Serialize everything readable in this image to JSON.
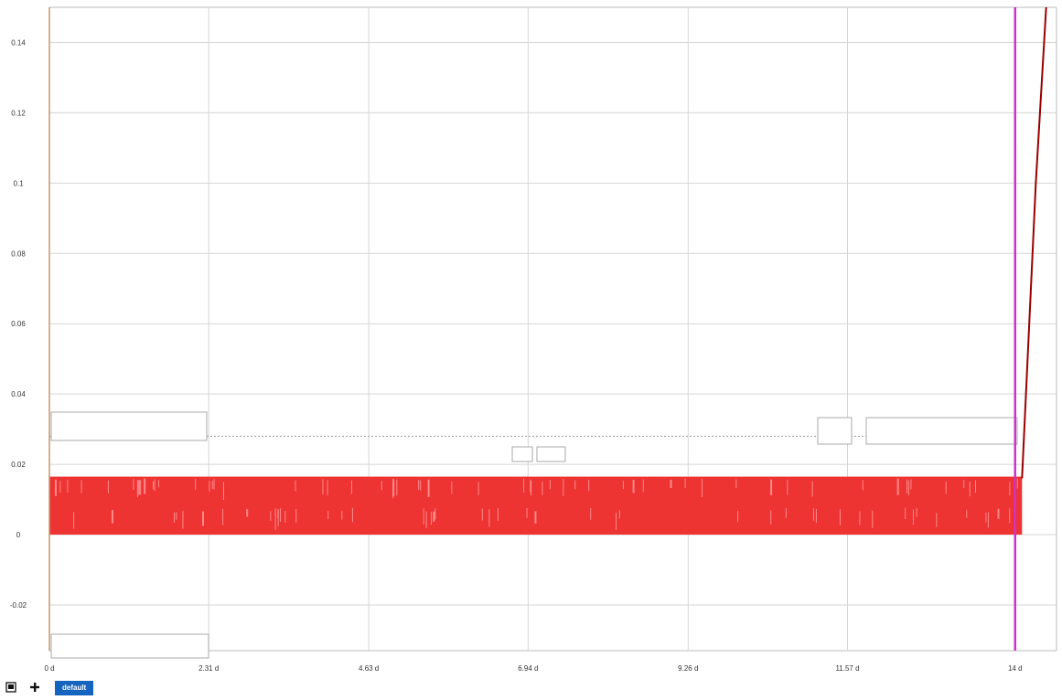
{
  "chart_data": {
    "type": "line",
    "title": "",
    "xlabel": "",
    "ylabel": "",
    "x_unit": "d",
    "xlim": [
      0,
      14.6
    ],
    "ylim": [
      -0.033,
      0.15
    ],
    "x_ticks": [
      {
        "value": 0,
        "label": "0 d"
      },
      {
        "value": 2.31,
        "label": "2.31 d"
      },
      {
        "value": 4.63,
        "label": "4.63 d"
      },
      {
        "value": 6.94,
        "label": "6.94 d"
      },
      {
        "value": 9.26,
        "label": "9.26 d"
      },
      {
        "value": 11.57,
        "label": "11.57 d"
      },
      {
        "value": 14,
        "label": "14 d"
      }
    ],
    "y_ticks": [
      {
        "value": 0.14,
        "label": "0.14"
      },
      {
        "value": 0.12,
        "label": "0.12"
      },
      {
        "value": 0.1,
        "label": "0.1"
      },
      {
        "value": 0.08,
        "label": "0.08"
      },
      {
        "value": 0.06,
        "label": "0.06"
      },
      {
        "value": 0.04,
        "label": "0.04"
      },
      {
        "value": 0.02,
        "label": "0.02"
      },
      {
        "value": 0,
        "label": "0"
      },
      {
        "value": -0.02,
        "label": "-0.02"
      }
    ],
    "grid": true,
    "series": [
      {
        "color": "#ee3333",
        "kind": "oscillating band",
        "x_range": [
          0,
          14.1
        ],
        "y_range": [
          0,
          0.0165
        ]
      },
      {
        "color": "#990000",
        "kind": "line",
        "x": [
          14.1,
          14.3,
          14.45
        ],
        "y": [
          0.016,
          0.1,
          0.15
        ]
      }
    ],
    "threshold_line": {
      "y": 0.028,
      "style": "dotted",
      "color": "#999999"
    },
    "markers": [
      {
        "x": 0,
        "color": "#c8966a"
      },
      {
        "x": 14,
        "color": "#cc33cc"
      }
    ],
    "colors": {
      "grid": "#d6d6d6",
      "axis": "#bbbbbb",
      "band": "#ee3333",
      "band_gap": "#ff9999",
      "line_dark": "#990000",
      "start_marker": "#c8966a",
      "cursor_marker": "#cc33cc",
      "cursor_label": "#cc33cc",
      "start_label": "#d08040"
    }
  },
  "toolbar": {
    "tab_label": "default",
    "icons": [
      "image-export-icon",
      "add-icon"
    ]
  }
}
